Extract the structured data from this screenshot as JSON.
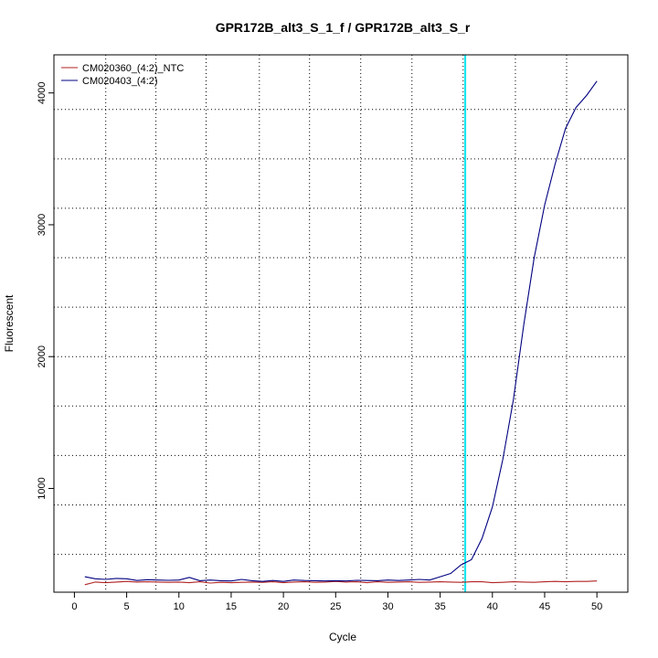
{
  "chart_data": {
    "type": "line",
    "title": "GPR172B_alt3_S_1_f / GPR172B_alt3_S_r",
    "xlabel": "Cycle",
    "ylabel": "Fluorescent",
    "xlim": [
      -1.96,
      52.96
    ],
    "ylim": [
      213,
      4289
    ],
    "x_ticks": [
      "0",
      "5",
      "10",
      "15",
      "20",
      "25",
      "30",
      "35",
      "40",
      "45",
      "50"
    ],
    "y_ticks": [
      "1000",
      "2000",
      "3000",
      "4000"
    ],
    "x_grid": [
      3,
      7.8,
      12.6,
      17.7,
      22.5,
      27.4,
      32.3,
      37.2,
      42.2,
      47.1
    ],
    "y_grid": [
      500,
      875,
      1250,
      1625,
      2000,
      2375,
      2750,
      3125,
      3500,
      3875
    ],
    "grid": true,
    "threshold": {
      "x": 37.4,
      "color": "#00e5ee"
    },
    "legend_position": "top-left",
    "series": [
      {
        "name": "CM020360_(4:2)_NTC",
        "color": "#b22222",
        "x": [
          1,
          2,
          3,
          4,
          5,
          6,
          7,
          8,
          9,
          10,
          11,
          12,
          13,
          14,
          15,
          16,
          17,
          18,
          19,
          20,
          21,
          22,
          23,
          24,
          25,
          26,
          27,
          28,
          29,
          30,
          31,
          32,
          33,
          34,
          35,
          36,
          37,
          38,
          39,
          40,
          41,
          42,
          43,
          44,
          45,
          46,
          47,
          48,
          49,
          50
        ],
        "values": [
          270,
          290,
          285,
          290,
          295,
          290,
          292,
          290,
          288,
          290,
          285,
          292,
          282,
          288,
          285,
          288,
          290,
          288,
          292,
          285,
          290,
          292,
          288,
          290,
          295,
          290,
          292,
          285,
          292,
          288,
          290,
          292,
          288,
          290,
          292,
          290,
          288,
          292,
          292,
          285,
          288,
          292,
          290,
          288,
          292,
          295,
          292,
          295,
          295,
          298
        ]
      },
      {
        "name": "CM020403_(4:2)",
        "color": "#000080",
        "x": [
          1,
          2,
          3,
          4,
          5,
          6,
          7,
          8,
          9,
          10,
          11,
          12,
          13,
          14,
          15,
          16,
          17,
          18,
          19,
          20,
          21,
          22,
          23,
          24,
          25,
          26,
          27,
          28,
          29,
          30,
          31,
          32,
          33,
          34,
          35,
          36,
          37,
          38,
          39,
          40,
          41,
          42,
          43,
          44,
          45,
          46,
          47,
          48,
          49,
          50
        ],
        "values": [
          330,
          315,
          310,
          318,
          315,
          302,
          308,
          305,
          303,
          305,
          325,
          300,
          305,
          300,
          298,
          310,
          300,
          295,
          302,
          295,
          305,
          302,
          300,
          298,
          300,
          298,
          303,
          302,
          300,
          305,
          302,
          305,
          310,
          305,
          330,
          355,
          420,
          460,
          620,
          860,
          1220,
          1670,
          2240,
          2750,
          3150,
          3460,
          3730,
          3890,
          3980,
          4090
        ]
      }
    ]
  }
}
